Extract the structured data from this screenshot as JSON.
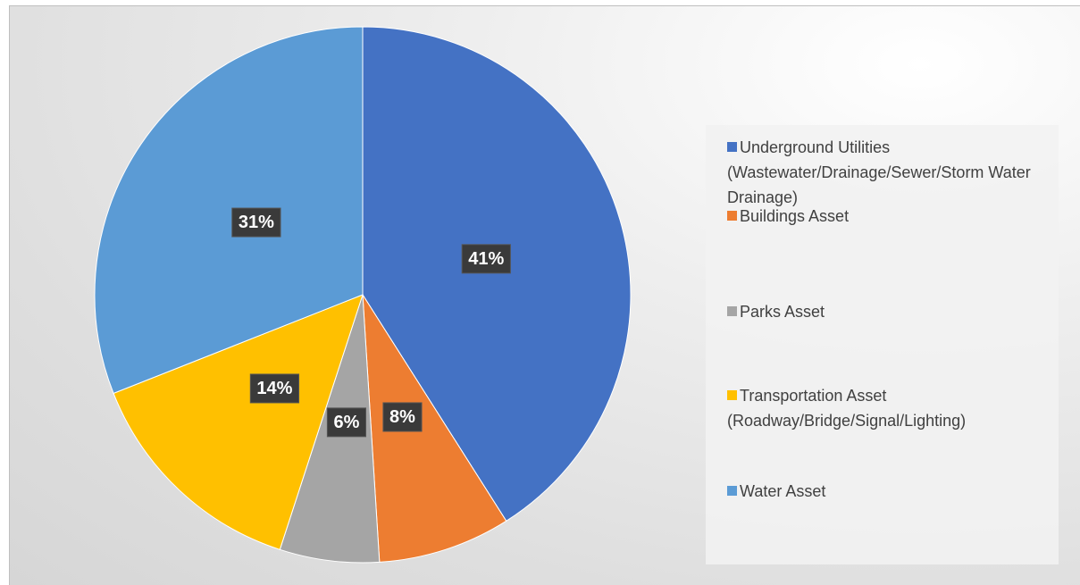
{
  "chart_data": {
    "type": "pie",
    "categories": [
      "Underground Utilities (Wastewater/Drainage/Sewer/Storm Water Drainage)",
      "Buildings Asset",
      "Parks Asset",
      "Transportation Asset (Roadway/Bridge/Signal/Lighting)",
      "Water Asset"
    ],
    "values": [
      41,
      8,
      6,
      14,
      31
    ],
    "value_labels": [
      "41%",
      "8%",
      "6%",
      "14%",
      "31%"
    ],
    "colors": [
      "#4472c4",
      "#ed7d31",
      "#a5a5a5",
      "#ffc000",
      "#5b9bd5"
    ],
    "legend": "right"
  }
}
